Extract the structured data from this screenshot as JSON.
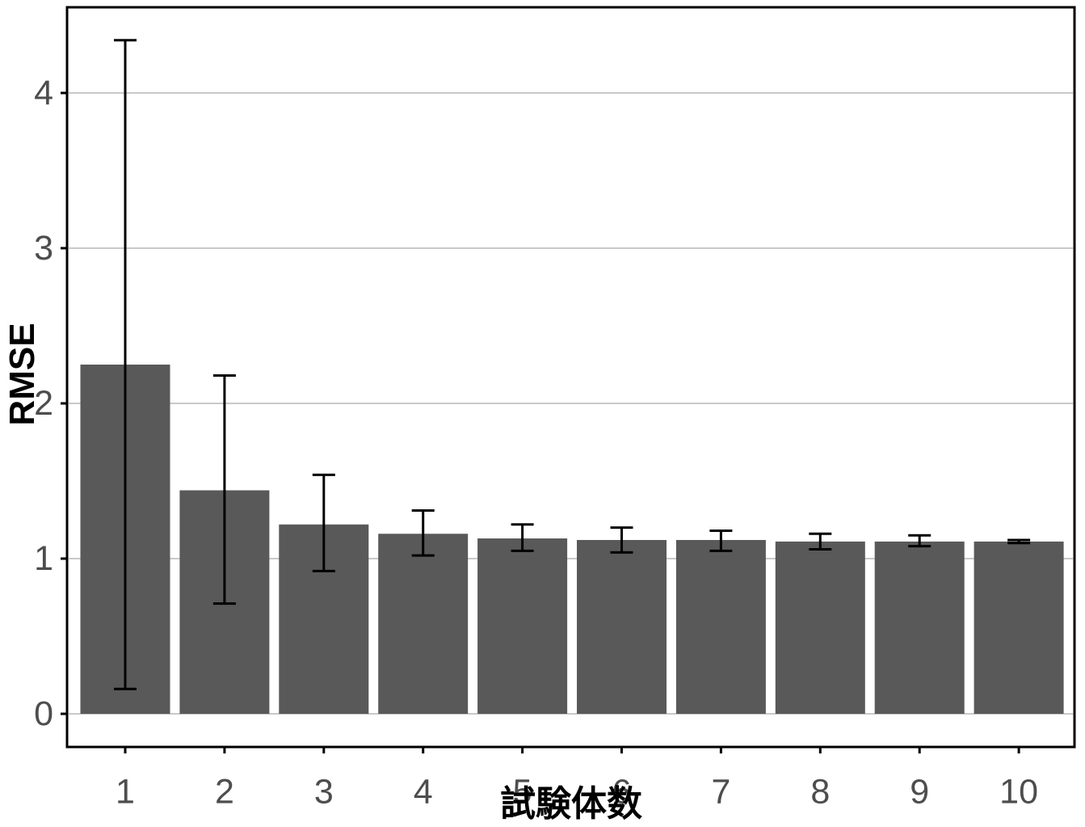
{
  "chart_data": {
    "type": "bar",
    "title": "",
    "xlabel": "試験体数",
    "ylabel": "RMSE",
    "categories": [
      "1",
      "2",
      "3",
      "4",
      "5",
      "6",
      "7",
      "8",
      "9",
      "10"
    ],
    "values": [
      2.25,
      1.44,
      1.22,
      1.16,
      1.13,
      1.12,
      1.12,
      1.11,
      1.11,
      1.11
    ],
    "error_low": [
      0.16,
      0.71,
      0.92,
      1.02,
      1.05,
      1.04,
      1.05,
      1.06,
      1.08,
      1.1
    ],
    "error_high": [
      4.34,
      2.18,
      1.54,
      1.31,
      1.22,
      1.2,
      1.18,
      1.16,
      1.15,
      1.12
    ],
    "y_ticks": [
      0,
      1,
      2,
      3,
      4
    ],
    "ylim": [
      -0.21,
      4.55
    ],
    "grid": "horizontal-major-only",
    "legend": "none",
    "bar_color": "#595959",
    "error_color": "#000000",
    "grid_color": "#c9c9c9",
    "axis_text_color": "#4d4d4d",
    "axis_title_color": "#000000",
    "panel_border_color": "#000000",
    "background": "#ffffff"
  }
}
